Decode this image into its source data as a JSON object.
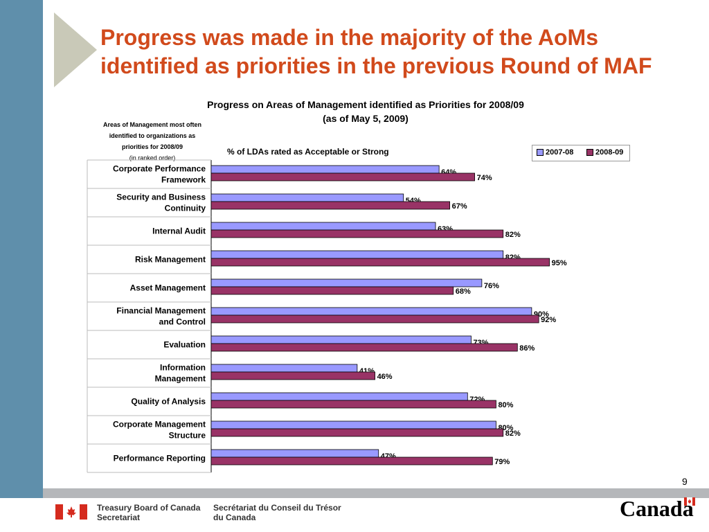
{
  "slide": {
    "title": "Progress was made in the majority of the AoMs identified as priorities in the previous Round of MAF",
    "page_number": "9"
  },
  "footer": {
    "dept_en_line1": "Treasury Board of Canada",
    "dept_en_line2": "Secretariat",
    "dept_fr_line1": "Secrétariat du Conseil du Trésor",
    "dept_fr_line2": "du Canada",
    "wordmark": "Canadä"
  },
  "colors": {
    "title": "#d14a1c",
    "sidebar": "#5f8fab",
    "series_2007_08": "#9999ff",
    "series_2008_09": "#993366",
    "flag_red": "#d52b1e"
  },
  "chart_data": {
    "type": "bar",
    "orientation": "horizontal",
    "title": "Progress on Areas of Management identified as Priorities for 2008/09",
    "subtitle": "(as of May 5, 2009)",
    "category_header_lines": [
      "Areas of Management most often",
      "identified to organizations as",
      "priorities  for 2008/09"
    ],
    "category_header_note": "(in ranked order)",
    "ylabel": "% of LDAs rated as Acceptable or Strong",
    "xlim": [
      0,
      100
    ],
    "grid": false,
    "legend_position": "top-right",
    "categories": [
      [
        "Corporate Performance",
        "Framework"
      ],
      [
        "Security and Business",
        "Continuity"
      ],
      [
        "Internal Audit"
      ],
      [
        "Risk Management"
      ],
      [
        "Asset Management"
      ],
      [
        "Financial Management",
        "and Control"
      ],
      [
        "Evaluation"
      ],
      [
        "Information",
        "Management"
      ],
      [
        "Quality of Analysis"
      ],
      [
        "Corporate Management",
        "Structure"
      ],
      [
        "Performance Reporting"
      ]
    ],
    "series": [
      {
        "name": "2007-08",
        "values": [
          64,
          54,
          63,
          82,
          76,
          90,
          73,
          41,
          72,
          80,
          47
        ]
      },
      {
        "name": "2008-09",
        "values": [
          74,
          67,
          82,
          95,
          68,
          92,
          86,
          46,
          80,
          82,
          79
        ]
      }
    ],
    "value_suffix": "%"
  }
}
